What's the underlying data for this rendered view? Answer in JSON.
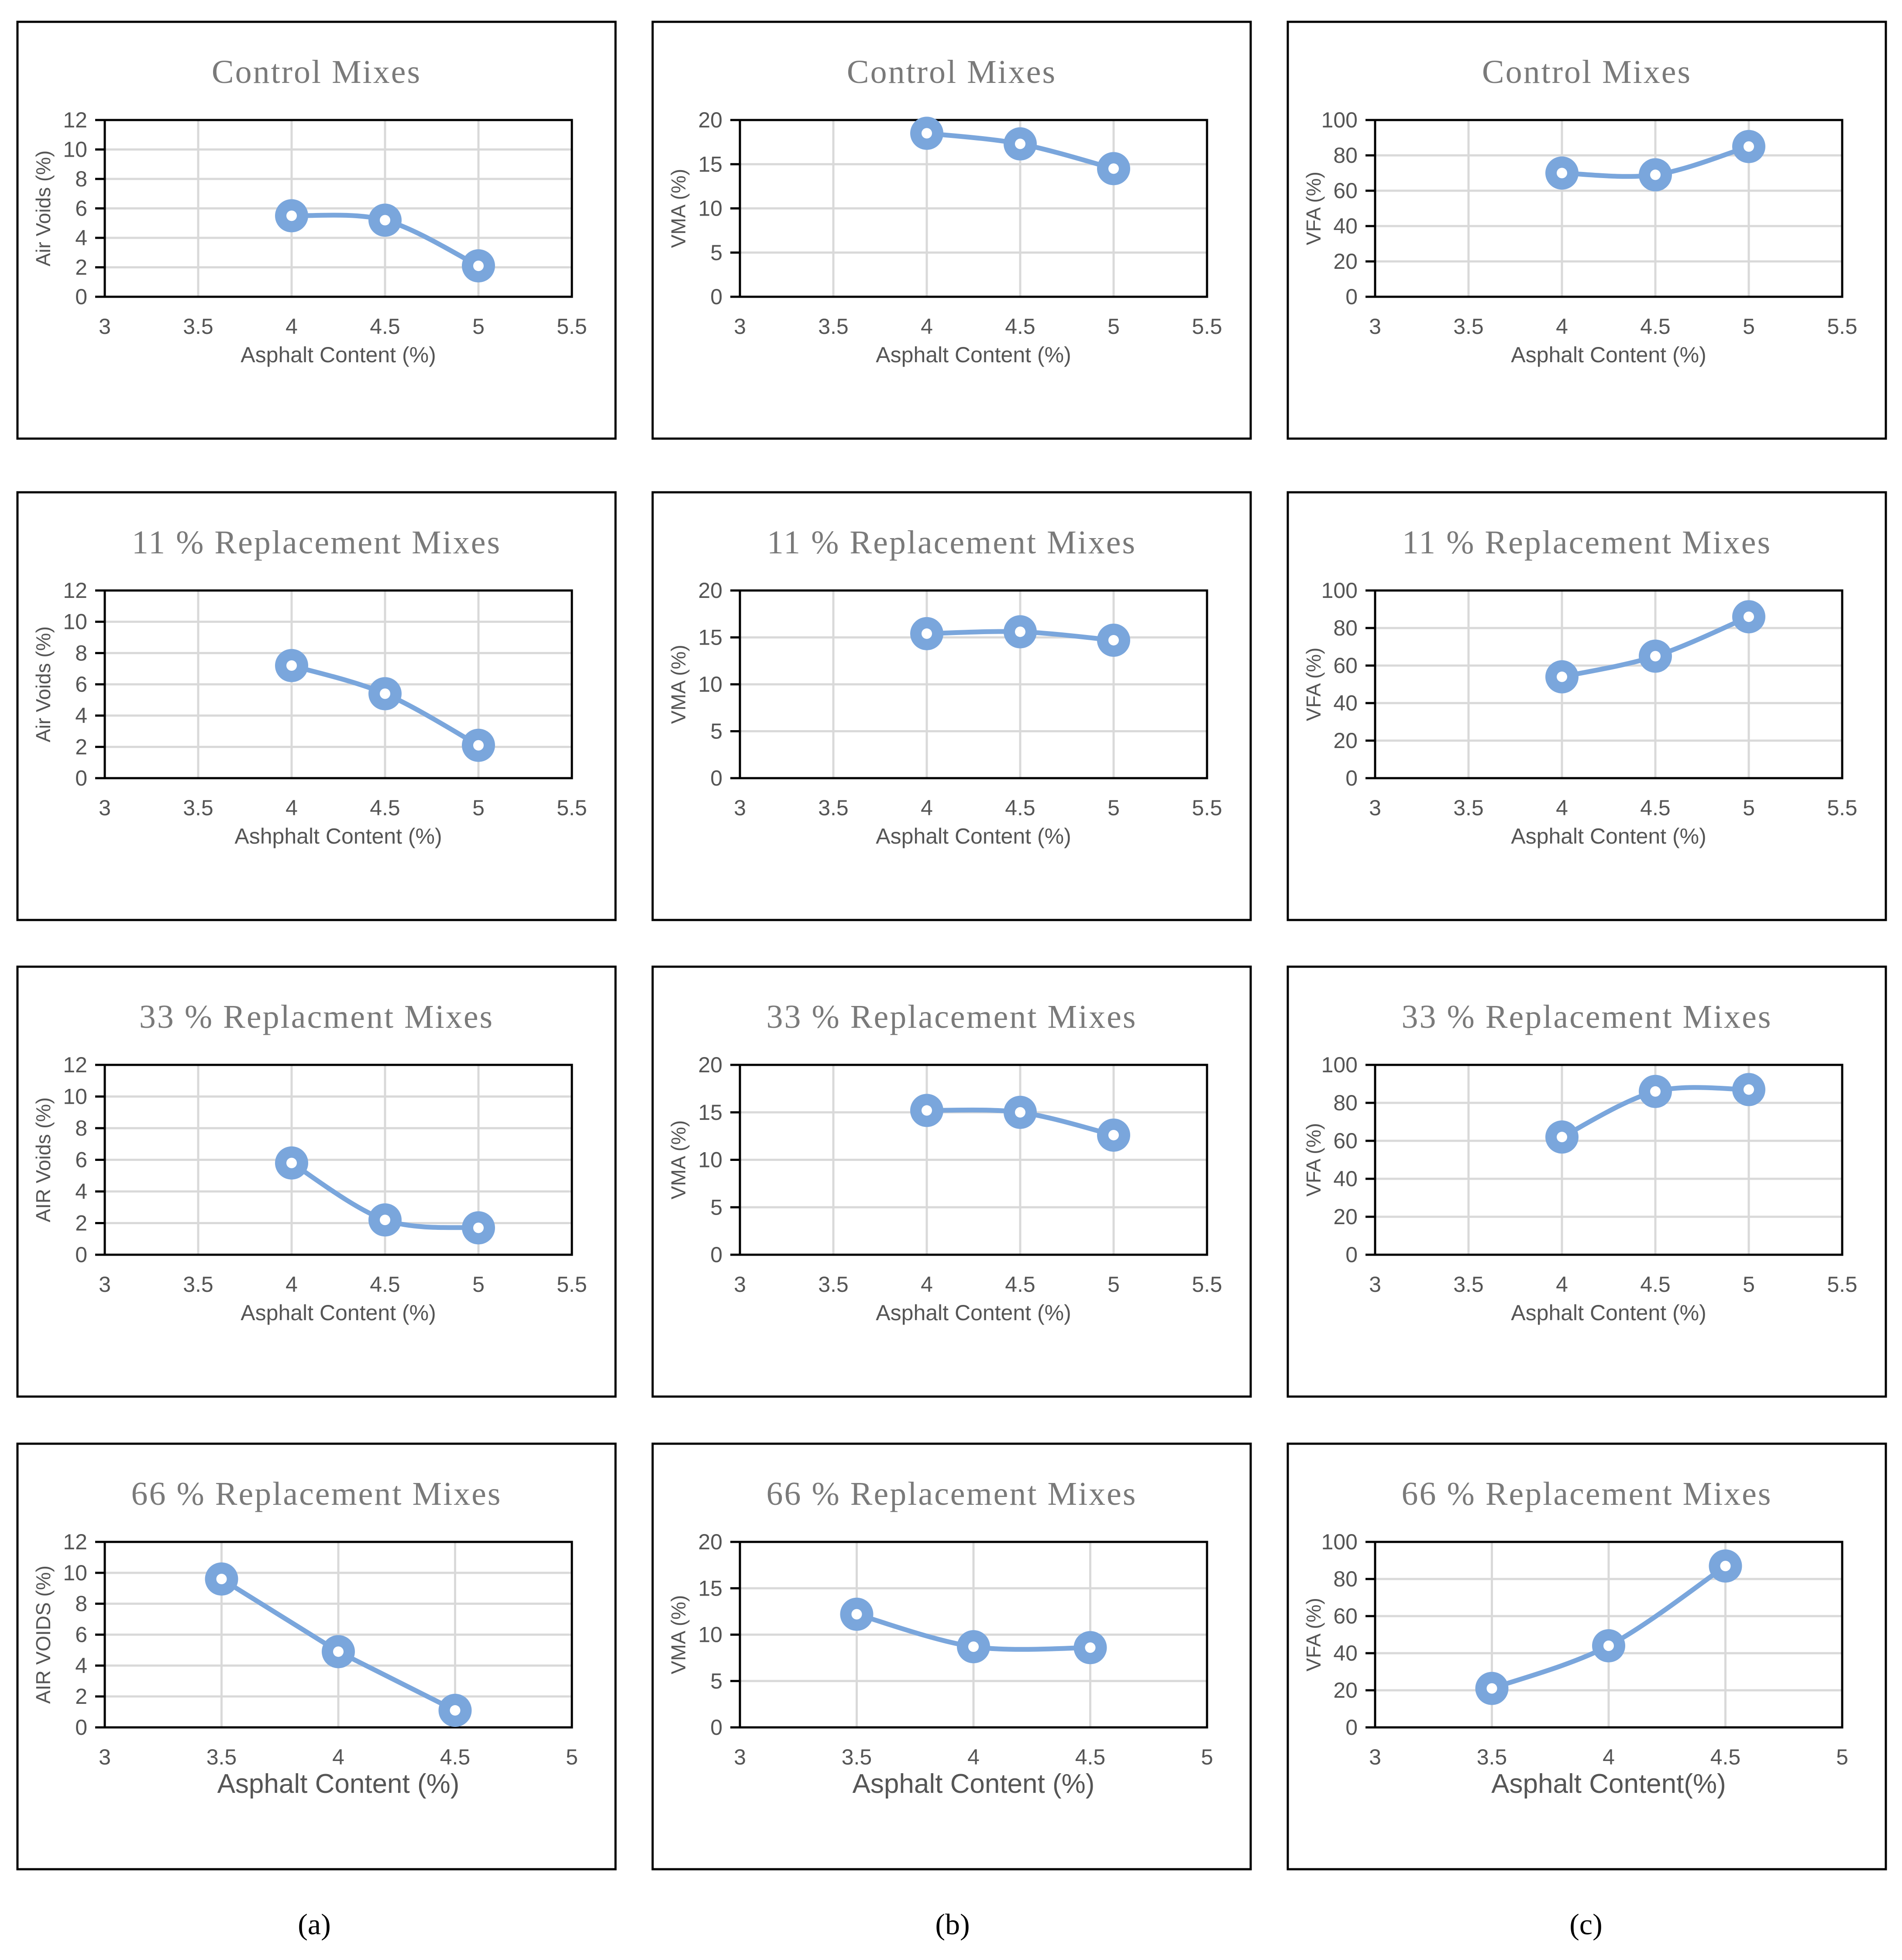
{
  "figure": {
    "column_labels": [
      "(a)",
      "(b)",
      "(c)"
    ],
    "series_color": "#7aa6dc",
    "grid_color": "#d9d9d9"
  },
  "chart_data": [
    {
      "type": "line",
      "title": "Control Mixes",
      "xlabel": "Asphalt Content (%)",
      "ylabel": "Air Voids (%)",
      "x": [
        4,
        4.5,
        5
      ],
      "values": [
        5.5,
        5.2,
        2.1
      ],
      "xlim": [
        3,
        5.5
      ],
      "xticks": [
        "3",
        "3.5",
        "4",
        "4.5",
        "5",
        "5.5"
      ],
      "ylim": [
        0,
        12
      ],
      "yticks": [
        "0",
        "2",
        "4",
        "6",
        "8",
        "10",
        "12"
      ],
      "grid": true
    },
    {
      "type": "line",
      "title": "Control Mixes",
      "xlabel": "Asphalt Content (%)",
      "ylabel": "VMA (%)",
      "x": [
        4,
        4.5,
        5
      ],
      "values": [
        18.5,
        17.3,
        14.5
      ],
      "xlim": [
        3,
        5.5
      ],
      "xticks": [
        "3",
        "3.5",
        "4",
        "4.5",
        "5",
        "5.5"
      ],
      "ylim": [
        0,
        20
      ],
      "yticks": [
        "0",
        "5",
        "10",
        "15",
        "20"
      ],
      "grid": true
    },
    {
      "type": "line",
      "title": "Control Mixes",
      "xlabel": "Asphalt Content (%)",
      "ylabel": "VFA (%)",
      "x": [
        4,
        4.5,
        5
      ],
      "values": [
        70,
        69,
        85
      ],
      "xlim": [
        3,
        5.5
      ],
      "xticks": [
        "3",
        "3.5",
        "4",
        "4.5",
        "5",
        "5.5"
      ],
      "ylim": [
        0,
        100
      ],
      "yticks": [
        "0",
        "20",
        "40",
        "60",
        "80",
        "100"
      ],
      "grid": true
    },
    {
      "type": "line",
      "title": "11 % Replacement Mixes",
      "xlabel": "Ashphalt Content (%)",
      "ylabel": "Air Voids (%)",
      "x": [
        4,
        4.5,
        5
      ],
      "values": [
        7.2,
        5.4,
        2.1
      ],
      "xlim": [
        3,
        5.5
      ],
      "xticks": [
        "3",
        "3.5",
        "4",
        "4.5",
        "5",
        "5.5"
      ],
      "ylim": [
        0,
        12
      ],
      "yticks": [
        "0",
        "2",
        "4",
        "6",
        "8",
        "10",
        "12"
      ],
      "grid": true
    },
    {
      "type": "line",
      "title": "11 % Replacement Mixes",
      "xlabel": "Asphalt Content (%)",
      "ylabel": "VMA (%)",
      "x": [
        4,
        4.5,
        5
      ],
      "values": [
        15.4,
        15.6,
        14.7
      ],
      "xlim": [
        3,
        5.5
      ],
      "xticks": [
        "3",
        "3.5",
        "4",
        "4.5",
        "5",
        "5.5"
      ],
      "ylim": [
        0,
        20
      ],
      "yticks": [
        "0",
        "5",
        "10",
        "15",
        "20"
      ],
      "grid": true
    },
    {
      "type": "line",
      "title": "11 % Replacement Mixes",
      "xlabel": "Asphalt Content (%)",
      "ylabel": "VFA (%)",
      "x": [
        4,
        4.5,
        5
      ],
      "values": [
        54,
        65,
        86
      ],
      "xlim": [
        3,
        5.5
      ],
      "xticks": [
        "3",
        "3.5",
        "4",
        "4.5",
        "5",
        "5.5"
      ],
      "ylim": [
        0,
        100
      ],
      "yticks": [
        "0",
        "20",
        "40",
        "60",
        "80",
        "100"
      ],
      "grid": true
    },
    {
      "type": "line",
      "title": "33 % Replacment Mixes",
      "xlabel": "Asphalt Content (%)",
      "ylabel": "AIR Voids (%)",
      "x": [
        4,
        4.5,
        5
      ],
      "values": [
        5.8,
        2.2,
        1.7
      ],
      "xlim": [
        3,
        5.5
      ],
      "xticks": [
        "3",
        "3.5",
        "4",
        "4.5",
        "5",
        "5.5"
      ],
      "ylim": [
        0,
        12
      ],
      "yticks": [
        "0",
        "2",
        "4",
        "6",
        "8",
        "10",
        "12"
      ],
      "grid": true
    },
    {
      "type": "line",
      "title": "33 % Replacement Mixes",
      "xlabel": "Asphalt Content (%)",
      "ylabel": "VMA (%)",
      "x": [
        4,
        4.5,
        5
      ],
      "values": [
        15.2,
        15.0,
        12.6
      ],
      "xlim": [
        3,
        5.5
      ],
      "xticks": [
        "3",
        "3.5",
        "4",
        "4.5",
        "5",
        "5.5"
      ],
      "ylim": [
        0,
        20
      ],
      "yticks": [
        "0",
        "5",
        "10",
        "15",
        "20"
      ],
      "grid": true
    },
    {
      "type": "line",
      "title": "33 % Replacement Mixes",
      "xlabel": "Asphalt Content (%)",
      "ylabel": "VFA (%)",
      "x": [
        4,
        4.5,
        5
      ],
      "values": [
        62,
        86,
        87
      ],
      "xlim": [
        3,
        5.5
      ],
      "xticks": [
        "3",
        "3.5",
        "4",
        "4.5",
        "5",
        "5.5"
      ],
      "ylim": [
        0,
        100
      ],
      "yticks": [
        "0",
        "20",
        "40",
        "60",
        "80",
        "100"
      ],
      "grid": true
    },
    {
      "type": "line",
      "title": "66 % Replacement Mixes",
      "xlabel": "Asphalt Content (%)",
      "ylabel": "AIR VOIDS (%)",
      "x": [
        3.5,
        4,
        4.5
      ],
      "values": [
        9.6,
        4.9,
        1.1
      ],
      "xlim": [
        3,
        5
      ],
      "xticks": [
        "3",
        "3.5",
        "4",
        "4.5",
        "5"
      ],
      "ylim": [
        0,
        12
      ],
      "yticks": [
        "0",
        "2",
        "4",
        "6",
        "8",
        "10",
        "12"
      ],
      "grid": true
    },
    {
      "type": "line",
      "title": "66 % Replacement Mixes",
      "xlabel": "Asphalt Content (%)",
      "ylabel": "VMA (%)",
      "x": [
        3.5,
        4,
        4.5
      ],
      "values": [
        12.2,
        8.7,
        8.6
      ],
      "xlim": [
        3,
        5
      ],
      "xticks": [
        "3",
        "3.5",
        "4",
        "4.5",
        "5"
      ],
      "ylim": [
        0,
        20
      ],
      "yticks": [
        "0",
        "5",
        "10",
        "15",
        "20"
      ],
      "grid": true
    },
    {
      "type": "line",
      "title": "66 % Replacement Mixes",
      "xlabel": "Asphalt Content(%)",
      "ylabel": "VFA (%)",
      "x": [
        3.5,
        4,
        4.5
      ],
      "values": [
        21,
        44,
        87
      ],
      "xlim": [
        3,
        5
      ],
      "xticks": [
        "3",
        "3.5",
        "4",
        "4.5",
        "5"
      ],
      "ylim": [
        0,
        100
      ],
      "yticks": [
        "0",
        "20",
        "40",
        "60",
        "80",
        "100"
      ],
      "grid": true
    }
  ]
}
